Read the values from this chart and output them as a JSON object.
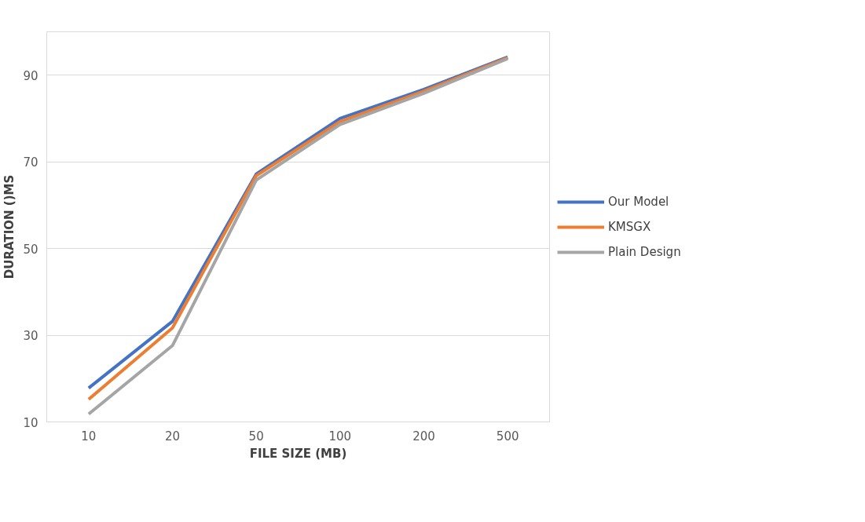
{
  "chart_data": {
    "type": "line",
    "xlabel": "FILE SIZE (MB)",
    "ylabel": "DURATION ()MS",
    "categories": [
      "10",
      "20",
      "50",
      "100",
      "200",
      "500"
    ],
    "series": [
      {
        "name": "Our Model",
        "color": "#4472c4",
        "values": [
          17.8,
          33.2,
          67.2,
          80,
          86.7,
          94.2
        ]
      },
      {
        "name": "KMSGX",
        "color": "#ed7d31",
        "values": [
          15.2,
          31.7,
          66.8,
          79.3,
          86.3,
          94
        ]
      },
      {
        "name": "Plain Design",
        "color": "#a5a5a5",
        "values": [
          11.8,
          27.6,
          65.8,
          78.6,
          85.8,
          93.8
        ]
      }
    ],
    "ylim": [
      10,
      100
    ],
    "yticks": [
      10,
      30,
      50,
      70,
      90
    ],
    "grid": "y",
    "legend": "right",
    "marker": "none",
    "line_style": "solid"
  }
}
